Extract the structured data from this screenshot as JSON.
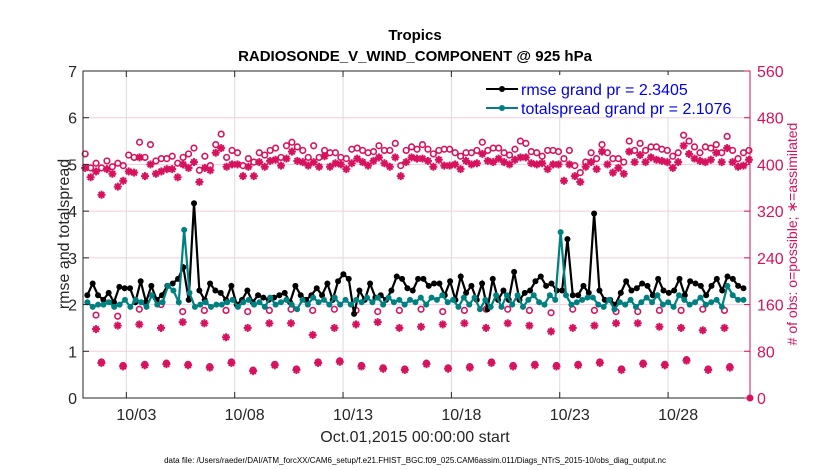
{
  "chart_data": {
    "type": "line",
    "title": "Tropics",
    "subtitle": "RADIOSONDE_V_WIND_COMPONENT @ 925 hPa",
    "xlabel": "Oct.01,2015 00:00:00 start",
    "ylabel": "rmse and totalspread",
    "y2label": "# of obs: o=possible; ∗=assimilated",
    "footer": "data file: /Users/raeder/DAI/ATM_forcXX/CAM6_setup/f.e21.FHIST_BGC.f09_025.CAM6assim.011/Diags_NTrS_2015-10/obs_diag_output.nc",
    "xlim_days": [
      0,
      30.78
    ],
    "ylim": [
      0,
      7
    ],
    "y2lim": [
      0,
      560
    ],
    "grid": true,
    "legend_position": "top-right",
    "x_ticks": [
      {
        "day": 2,
        "label": "10/03"
      },
      {
        "day": 7,
        "label": "10/08"
      },
      {
        "day": 12,
        "label": "10/13"
      },
      {
        "day": 17,
        "label": "10/18"
      },
      {
        "day": 22,
        "label": "10/23"
      },
      {
        "day": 27,
        "label": "10/28"
      }
    ],
    "y_ticks": [
      "0",
      "1",
      "2",
      "3",
      "4",
      "5",
      "6",
      "7"
    ],
    "y2_ticks": [
      "0",
      "80",
      "160",
      "240",
      "320",
      "400",
      "480",
      "560"
    ],
    "time_step_days": 0.25,
    "time_start_day": 0.25,
    "series": [
      {
        "name": "rmse",
        "legend": "rmse grand pr = 2.3405",
        "color": "#000000",
        "values": [
          2.2,
          2.45,
          2.2,
          2.1,
          2.25,
          2.05,
          2.38,
          2.35,
          2.35,
          2.05,
          2.5,
          2.05,
          2.4,
          2.1,
          2.2,
          2.4,
          2.45,
          2.55,
          2.8,
          2.1,
          4.17,
          2.3,
          2.1,
          2.45,
          2.3,
          2.25,
          2.1,
          2.4,
          2.0,
          2.1,
          2.3,
          2.05,
          2.2,
          2.15,
          2.1,
          2.15,
          2.2,
          2.25,
          2.05,
          2.4,
          2.2,
          2.1,
          2.2,
          2.35,
          2.2,
          2.45,
          2.1,
          2.5,
          2.65,
          2.55,
          1.8,
          2.3,
          2.1,
          2.45,
          2.15,
          2.2,
          2.1,
          2.3,
          2.6,
          2.55,
          2.35,
          2.3,
          2.55,
          2.55,
          2.4,
          2.45,
          2.45,
          2.2,
          2.5,
          2.1,
          2.6,
          2.25,
          2.4,
          2.1,
          2.45,
          1.9,
          2.55,
          2.1,
          2.3,
          2.1,
          2.7,
          2.1,
          2.25,
          2.3,
          2.5,
          2.6,
          2.4,
          2.45,
          2.3,
          2.3,
          3.4,
          2.2,
          2.2,
          2.4,
          2.25,
          3.95,
          2.3,
          2.1,
          2.1,
          2.0,
          2.25,
          2.5,
          2.3,
          2.35,
          2.45,
          2.4,
          2.2,
          2.55,
          2.3,
          2.25,
          2.3,
          2.55,
          2.2,
          2.5,
          2.45,
          2.4,
          2.2,
          2.4,
          2.55,
          2.3,
          2.6,
          2.55,
          2.4,
          2.35
        ]
      },
      {
        "name": "totalspread",
        "legend": "totalspread grand pr = 2.1076",
        "color": "#008080",
        "values": [
          2.05,
          1.95,
          2.0,
          2.0,
          2.05,
          1.95,
          2.0,
          2.1,
          1.95,
          2.1,
          2.05,
          1.95,
          2.2,
          2.0,
          2.05,
          2.4,
          2.3,
          2.05,
          3.6,
          2.25,
          1.95,
          2.0,
          2.05,
          1.95,
          2.0,
          2.0,
          2.05,
          2.1,
          1.95,
          2.05,
          2.1,
          2.0,
          2.05,
          1.95,
          2.15,
          2.0,
          2.05,
          2.1,
          2.0,
          1.9,
          2.1,
          2.0,
          2.15,
          2.05,
          2.1,
          2.0,
          2.15,
          2.0,
          2.1,
          2.0,
          2.1,
          2.05,
          2.15,
          2.05,
          2.15,
          2.0,
          2.15,
          2.05,
          2.1,
          2.0,
          2.1,
          2.05,
          2.15,
          2.0,
          2.15,
          2.1,
          2.2,
          2.05,
          2.1,
          1.95,
          2.15,
          2.0,
          2.15,
          1.9,
          2.1,
          1.95,
          2.2,
          1.95,
          2.2,
          2.0,
          2.2,
          1.95,
          2.1,
          2.2,
          2.05,
          2.0,
          2.2,
          2.1,
          3.55,
          2.2,
          2.0,
          2.05,
          2.1,
          2.15,
          2.15,
          2.0,
          1.95,
          2.1,
          1.9,
          2.05,
          2.0,
          2.1,
          1.95,
          2.05,
          2.15,
          2.05,
          2.2,
          2.0,
          2.05,
          1.95,
          2.2,
          2.1,
          2.0,
          2.05,
          2.15,
          2.0,
          2.05,
          2.1,
          1.95,
          2.4,
          2.2,
          2.1,
          2.1
        ]
      }
    ],
    "obs_possible": [
      418,
      394,
      402,
      394,
      406,
      396,
      402,
      398,
      416,
      412,
      438,
      412,
      434,
      406,
      410,
      410,
      414,
      402,
      412,
      418,
      428,
      390,
      414,
      398,
      434,
      452,
      412,
      424,
      420,
      398,
      410,
      404,
      420,
      416,
      424,
      428,
      412,
      432,
      438,
      430,
      424,
      412,
      432,
      412,
      424,
      420,
      420,
      412,
      410,
      426,
      428,
      424,
      420,
      422,
      432,
      424,
      424,
      436,
      398,
      424,
      430,
      426,
      434,
      426,
      418,
      424,
      426,
      426,
      420,
      414,
      420,
      420,
      424,
      438,
      424,
      428,
      428,
      420,
      416,
      426,
      440,
      436,
      422,
      420,
      414,
      424,
      424,
      422,
      410,
      424,
      398,
      386,
      404,
      420,
      410,
      434,
      420,
      410,
      410,
      404,
      440,
      424,
      436,
      424,
      430,
      430,
      426,
      424,
      414,
      420,
      450,
      440,
      430,
      420,
      430,
      428,
      434,
      420,
      448,
      424,
      410,
      420,
      424
    ],
    "obs_assimilated": [
      394,
      378,
      388,
      348,
      392,
      384,
      362,
      372,
      388,
      386,
      412,
      380,
      400,
      384,
      388,
      392,
      392,
      378,
      400,
      394,
      404,
      370,
      394,
      390,
      420,
      428,
      396,
      400,
      400,
      380,
      396,
      380,
      404,
      396,
      406,
      408,
      398,
      410,
      422,
      406,
      404,
      398,
      404,
      396,
      414,
      396,
      402,
      400,
      392,
      402,
      410,
      404,
      398,
      406,
      412,
      402,
      396,
      412,
      380,
      404,
      412,
      410,
      410,
      406,
      396,
      408,
      398,
      398,
      400,
      392,
      406,
      400,
      402,
      418,
      406,
      404,
      410,
      404,
      400,
      408,
      412,
      412,
      402,
      400,
      402,
      392,
      400,
      400,
      372,
      400,
      380,
      370,
      396,
      404,
      392,
      422,
      400,
      386,
      394,
      384,
      422,
      404,
      416,
      404,
      412,
      408,
      406,
      404,
      394,
      404,
      432,
      418,
      410,
      406,
      404,
      408,
      420,
      404,
      428,
      404,
      396,
      398,
      408
    ],
    "obs_mid_possible": [
      142,
      140,
      152,
      160,
      148,
      150,
      150,
      148,
      150,
      152,
      150,
      152,
      150,
      148,
      150,
      152,
      148,
      150,
      152,
      152,
      150,
      146,
      152,
      150,
      148,
      148,
      150,
      150,
      152,
      150
    ],
    "obs_mid_assimilated": [
      118,
      124,
      126,
      120,
      130,
      128,
      104,
      120,
      128,
      128,
      108,
      120,
      126,
      130,
      120,
      122,
      126,
      128,
      120,
      128,
      124,
      114,
      120,
      124,
      128,
      128,
      122,
      120,
      116,
      120
    ],
    "obs_low": [
      60,
      54,
      56,
      58,
      56,
      52,
      60,
      46,
      56,
      48,
      60,
      62,
      54,
      50,
      48,
      58,
      50,
      52,
      60,
      54,
      56,
      54,
      56,
      60,
      48,
      58,
      56,
      64,
      48,
      52
    ]
  }
}
